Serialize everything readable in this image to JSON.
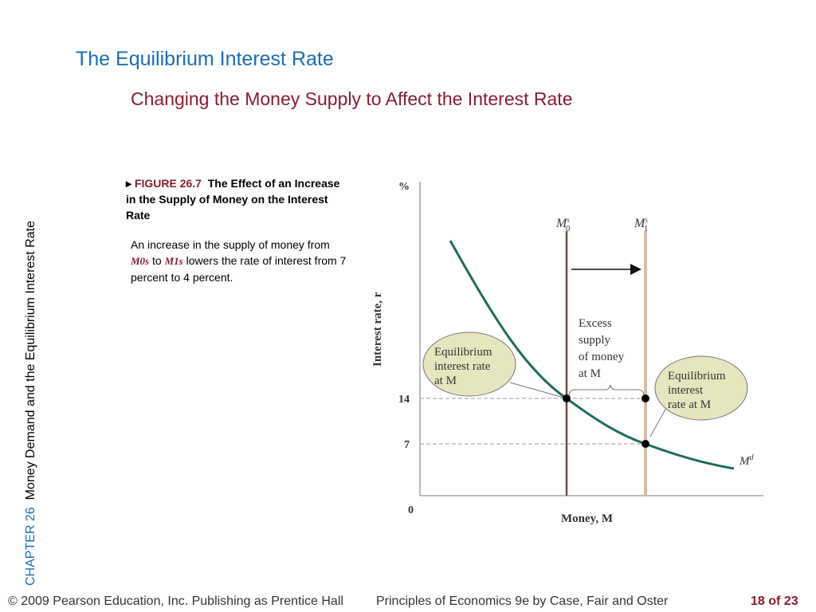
{
  "slide": {
    "title": "The Equilibrium Interest Rate",
    "subtitle": "Changing the Money Supply to Affect the Interest Rate",
    "side_chapter": "CHAPTER 26",
    "side_text": "Money Demand and the Equilibrium Interest Rate"
  },
  "caption": {
    "figure": "FIGURE 26.7",
    "title": "The Effect of an Increase in the Supply of Money on the Interest Rate",
    "text_1": "An increase in the supply of money from",
    "m0": "M0s",
    "text_2": "to",
    "m1": "M1s",
    "text_3": "lowers the rate of interest from 7 percent to 4 percent."
  },
  "diagram": {
    "y_unit": "%",
    "y_label": "Interest rate, r",
    "x_label": "Money, M",
    "origin": "0",
    "tick_14": "14",
    "tick_7": "7",
    "m0_label": "M",
    "m0_sub": "0",
    "m1_label": "M",
    "m1_sub": "1",
    "sup": "s",
    "md_label": "M",
    "md_sup": "d",
    "callout_left": [
      "Equilibrium",
      "interest rate",
      "at M"
    ],
    "callout_right": [
      "Equilibrium",
      "interest",
      "rate at M"
    ],
    "excess": [
      "Excess",
      "supply",
      "of money",
      "at  M"
    ],
    "curve_color": "#1e6b5c",
    "m0_color": "#6b4a44",
    "m1_color": "#d6bfa8",
    "callout_fill": "#e6e6be"
  },
  "footer": {
    "copyright": "© 2009 Pearson Education, Inc. Publishing as Prentice Hall",
    "book": "Principles of Economics 9e by Case, Fair and Oster",
    "page": "18 of 23"
  }
}
